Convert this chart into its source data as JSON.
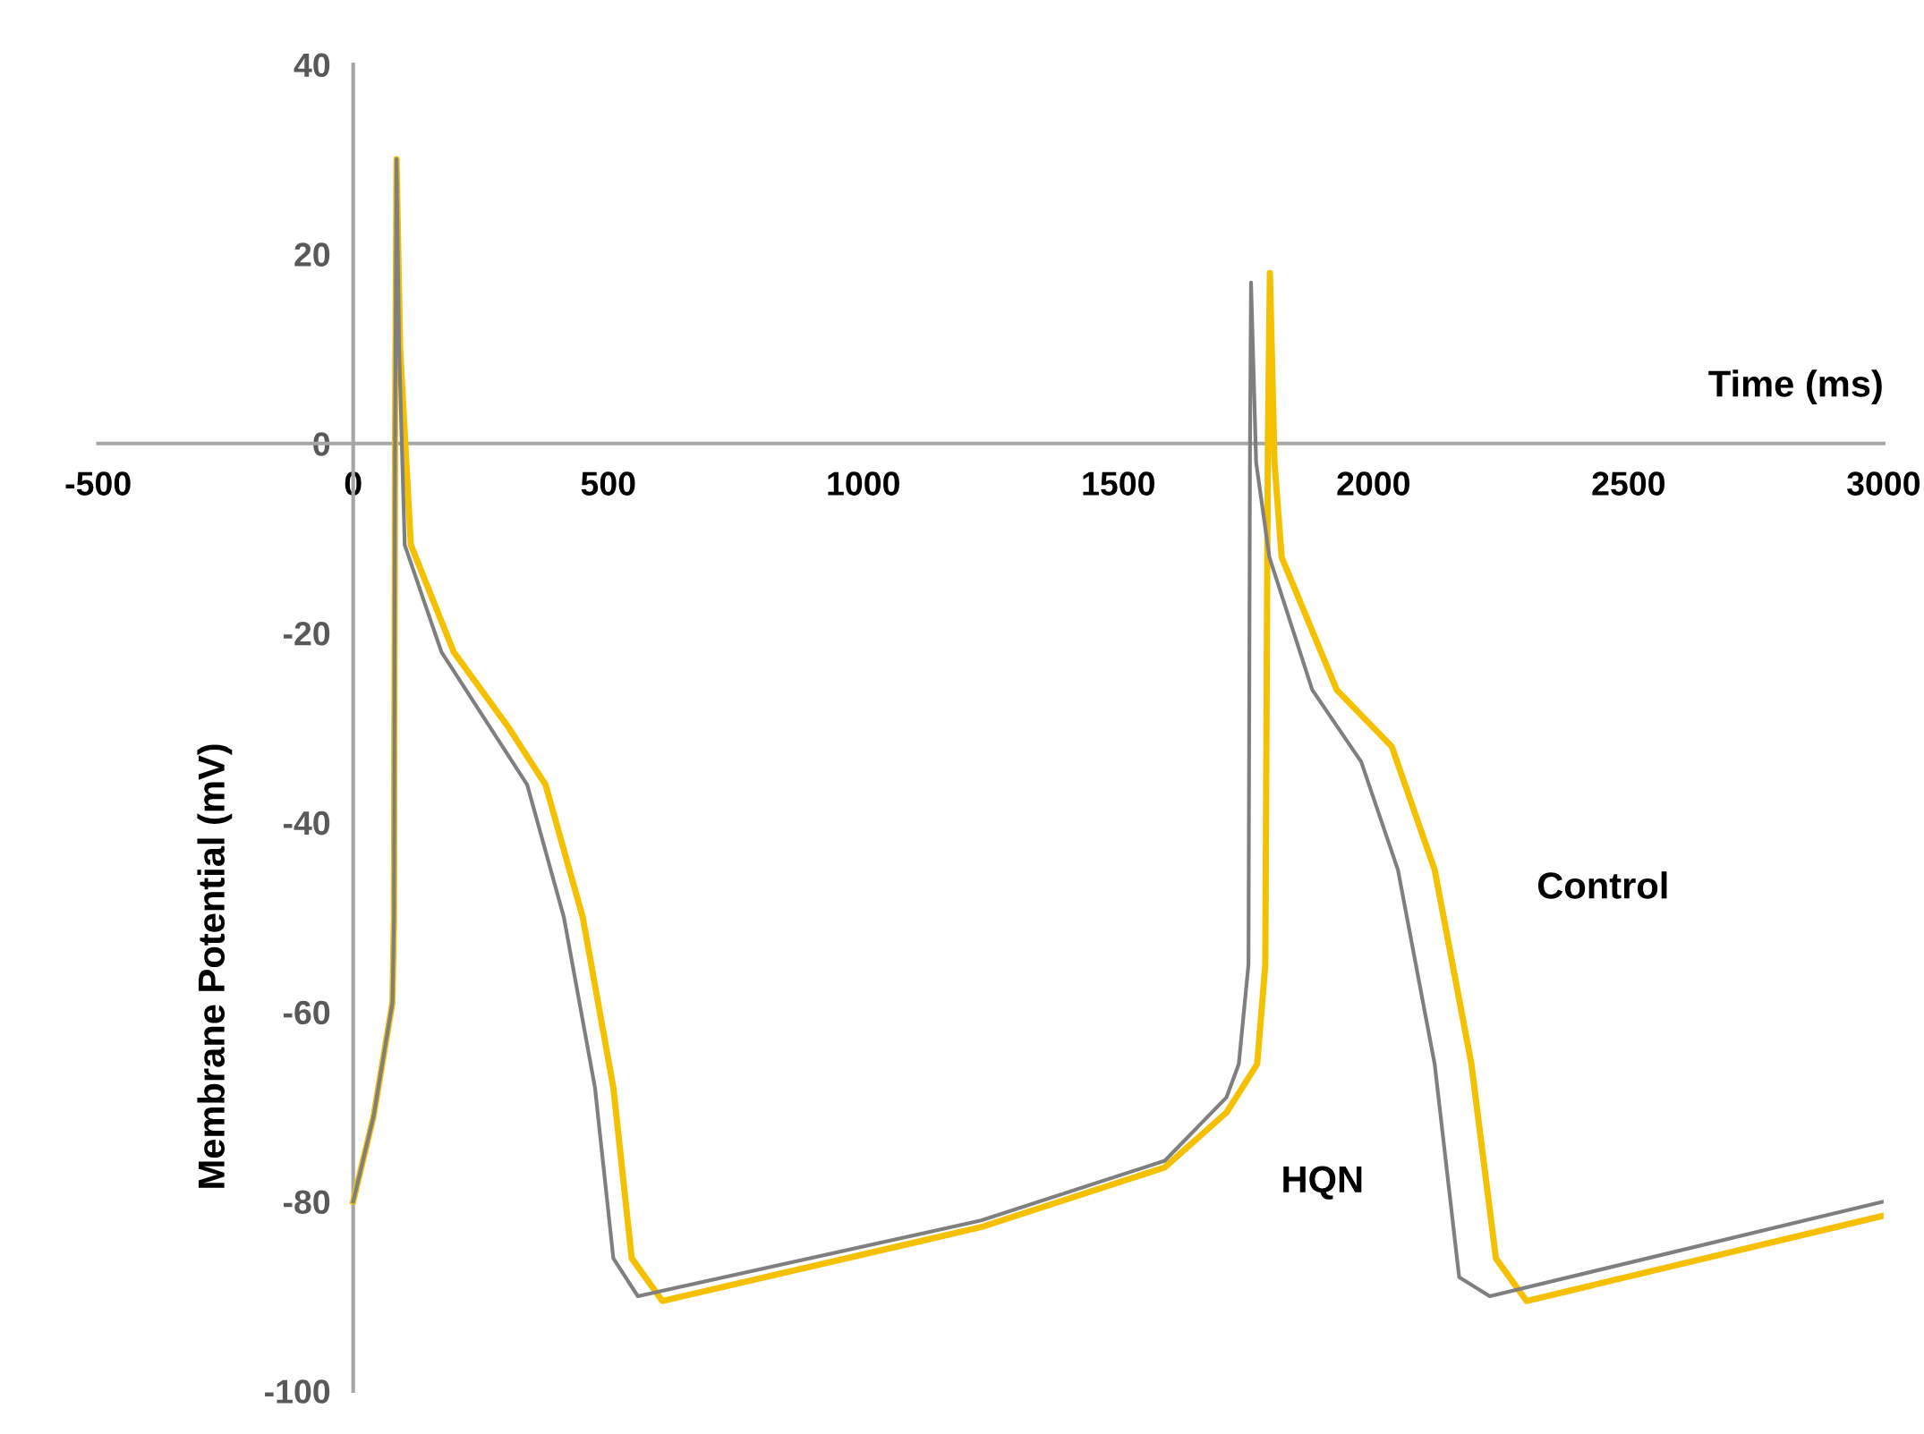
{
  "chart_data": {
    "type": "line",
    "xlabel": "Time (ms)",
    "ylabel": "Membrane Potential (mV)",
    "xlim": [
      -500,
      3000
    ],
    "xticks": [
      -500,
      0,
      500,
      1000,
      1500,
      2000,
      2500,
      3000
    ],
    "ylim": [
      -100,
      40
    ],
    "yticks": [
      -100,
      -80,
      -60,
      -40,
      -20,
      0,
      20,
      40
    ],
    "grid": false,
    "legend": false,
    "marker": "none",
    "line_style": "solid",
    "series": [
      {
        "name": "HQN",
        "color": "#7f7f7f",
        "x": [
          0,
          40,
          77,
          80,
          82,
          85,
          90,
          101,
          173,
          269,
          341,
          413,
          474,
          510,
          558,
          1231,
          1591,
          1712,
          1736,
          1755,
          1758,
          1760,
          1770,
          1796,
          1880,
          1976,
          2048,
          2120,
          2168,
          2228,
          3000
        ],
        "values": [
          -80,
          -71,
          -59,
          -50,
          0,
          30,
          10,
          -10.7,
          -22,
          -30,
          -36,
          -50,
          -68,
          -86,
          -90,
          -82,
          -75.7,
          -69,
          -65.5,
          -55,
          0,
          17,
          -2,
          -12,
          -26,
          -33.6,
          -45,
          -65.5,
          -88,
          -90,
          -80
        ]
      },
      {
        "name": "Control",
        "color": "#f5c000",
        "x": [
          0,
          40,
          77,
          80,
          82,
          85,
          92,
          113,
          197,
          305,
          377,
          450,
          510,
          546,
          606,
          1231,
          1591,
          1712,
          1772,
          1788,
          1793,
          1797,
          1806,
          1820,
          1928,
          2036,
          2120,
          2192,
          2240,
          2300,
          3000
        ],
        "values": [
          -80,
          -71,
          -59,
          -50,
          0,
          30,
          10,
          -10.7,
          -22,
          -30,
          -36,
          -50,
          -68,
          -86,
          -90.5,
          -82.7,
          -76.4,
          -70.6,
          -65.5,
          -55,
          0,
          18,
          -2,
          -12,
          -26,
          -32,
          -45,
          -65.5,
          -86,
          -90.5,
          -81.5
        ]
      }
    ]
  }
}
